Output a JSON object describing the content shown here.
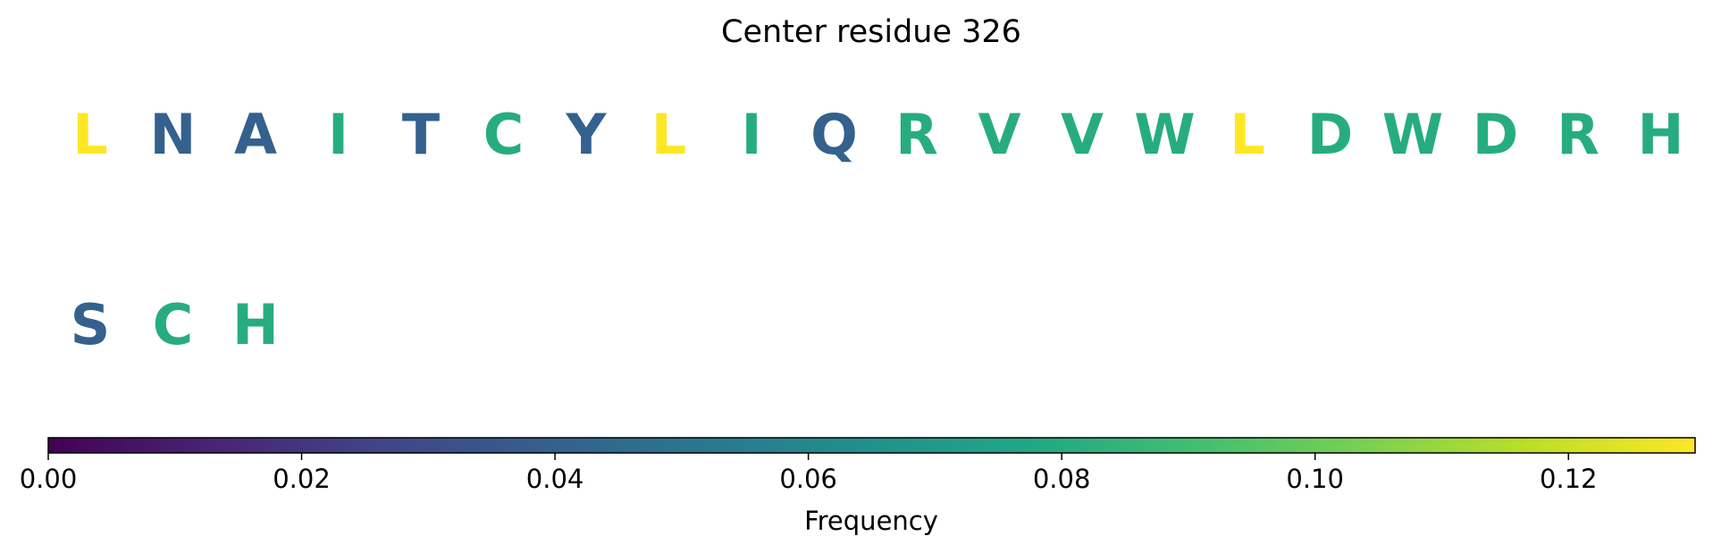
{
  "chart_data": {
    "type": "sequence-heatmap",
    "title": "Center residue 326",
    "residues": [
      {
        "letter": "L",
        "frequency": 0.13
      },
      {
        "letter": "N",
        "frequency": 0.04
      },
      {
        "letter": "A",
        "frequency": 0.04
      },
      {
        "letter": "I",
        "frequency": 0.08
      },
      {
        "letter": "T",
        "frequency": 0.04
      },
      {
        "letter": "C",
        "frequency": 0.08
      },
      {
        "letter": "Y",
        "frequency": 0.04
      },
      {
        "letter": "L",
        "frequency": 0.13
      },
      {
        "letter": "I",
        "frequency": 0.08
      },
      {
        "letter": "Q",
        "frequency": 0.04
      },
      {
        "letter": "R",
        "frequency": 0.08
      },
      {
        "letter": "V",
        "frequency": 0.08
      },
      {
        "letter": "V",
        "frequency": 0.08
      },
      {
        "letter": "W",
        "frequency": 0.08
      },
      {
        "letter": "L",
        "frequency": 0.13
      },
      {
        "letter": "D",
        "frequency": 0.08
      },
      {
        "letter": "W",
        "frequency": 0.08
      },
      {
        "letter": "D",
        "frequency": 0.08
      },
      {
        "letter": "R",
        "frequency": 0.08
      },
      {
        "letter": "H",
        "frequency": 0.08
      },
      {
        "letter": "S",
        "frequency": 0.04
      },
      {
        "letter": "C",
        "frequency": 0.08
      },
      {
        "letter": "H",
        "frequency": 0.08
      }
    ],
    "letters_per_row": 20,
    "colorbar": {
      "colormap": "viridis",
      "range": [
        0,
        0.13
      ],
      "ticks": [
        0.0,
        0.02,
        0.04,
        0.06,
        0.08,
        0.1,
        0.12
      ],
      "tick_labels": [
        "0.00",
        "0.02",
        "0.04",
        "0.06",
        "0.08",
        "0.10",
        "0.12"
      ],
      "label": "Frequency",
      "orientation": "horizontal",
      "placement": "bottom"
    }
  }
}
